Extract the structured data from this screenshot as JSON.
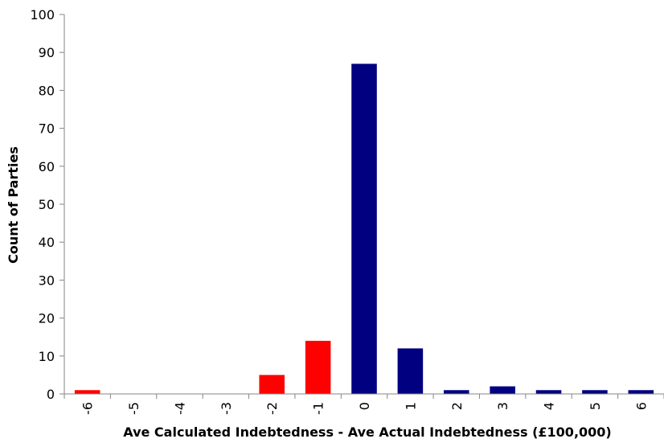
{
  "chart_data": {
    "type": "bar",
    "categories": [
      "-6",
      "-5",
      "-4",
      "-3",
      "-2",
      "-1",
      "0",
      "1",
      "2",
      "3",
      "4",
      "5",
      "6"
    ],
    "values": [
      1,
      0,
      0,
      0,
      5,
      14,
      87,
      12,
      1,
      2,
      1,
      1,
      1
    ],
    "xlabel": "Ave Calculated Indebtedness - Ave Actual Indebtedness (£100,000)",
    "ylabel": "Count of Parties",
    "ylim": [
      0,
      100
    ],
    "yticks": [
      0,
      10,
      20,
      30,
      40,
      50,
      60,
      70,
      80,
      90,
      100
    ],
    "grid": false,
    "legend": "none",
    "colors": {
      "negative": "#ff0000",
      "non_negative": "#000080",
      "axis": "#868686"
    }
  }
}
